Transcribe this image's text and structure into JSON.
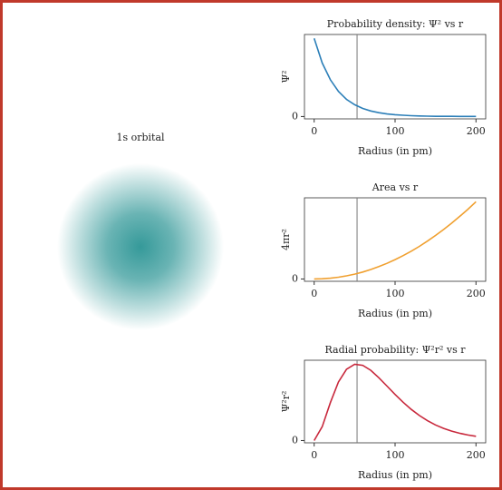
{
  "chart_data": [
    {
      "type": "orbital",
      "title": "1s orbital",
      "color": "#2a9494"
    },
    {
      "type": "line",
      "title": "Probability density: Ψ² vs r",
      "xlabel": "Radius (in pm)",
      "ylabel": "Ψ²",
      "x": [
        0,
        10,
        20,
        30,
        40,
        50,
        60,
        70,
        80,
        90,
        100,
        110,
        120,
        130,
        140,
        150,
        160,
        170,
        180,
        190,
        200
      ],
      "series": [
        {
          "color": "#2c7fb8",
          "values": [
            1,
            0.685,
            0.47,
            0.322,
            0.22,
            0.151,
            0.104,
            0.071,
            0.049,
            0.033,
            0.023,
            0.016,
            0.011,
            0.007,
            0.005,
            0.003,
            0.002,
            0.002,
            0.001,
            0.001,
            0.001
          ]
        }
      ],
      "xlim": [
        -12,
        212
      ],
      "ylim": [
        -0.03,
        1.05
      ],
      "xticks": [
        0,
        100,
        200
      ],
      "yticks": [
        0
      ],
      "vline": 53
    },
    {
      "type": "line",
      "title": "Area vs r",
      "xlabel": "Radius (in pm)",
      "ylabel": "4πr²",
      "x": [
        0,
        10,
        20,
        30,
        40,
        50,
        60,
        70,
        80,
        90,
        100,
        110,
        120,
        130,
        140,
        150,
        160,
        170,
        180,
        190,
        200
      ],
      "series": [
        {
          "color": "#f0a030",
          "values": [
            0,
            0.0025,
            0.01,
            0.0225,
            0.04,
            0.0625,
            0.09,
            0.1225,
            0.16,
            0.2025,
            0.25,
            0.3025,
            0.36,
            0.4225,
            0.49,
            0.5625,
            0.64,
            0.7225,
            0.81,
            0.9025,
            1
          ]
        }
      ],
      "xlim": [
        -12,
        212
      ],
      "ylim": [
        -0.03,
        1.05
      ],
      "xticks": [
        0,
        100,
        200
      ],
      "yticks": [
        0
      ],
      "vline": 53
    },
    {
      "type": "line",
      "title": "Radial probability: Ψ²r² vs r",
      "xlabel": "Radius (in pm)",
      "ylabel": "Ψ²r²",
      "x": [
        0,
        10,
        20,
        30,
        40,
        50,
        60,
        70,
        80,
        90,
        100,
        110,
        120,
        130,
        140,
        150,
        160,
        170,
        180,
        190,
        200
      ],
      "series": [
        {
          "color": "#c8283c",
          "values": [
            0,
            0.181,
            0.496,
            0.765,
            0.931,
            0.997,
            0.984,
            0.918,
            0.821,
            0.712,
            0.602,
            0.5,
            0.407,
            0.327,
            0.26,
            0.204,
            0.159,
            0.123,
            0.095,
            0.072,
            0.055
          ]
        }
      ],
      "xlim": [
        -12,
        212
      ],
      "ylim": [
        -0.03,
        1.05
      ],
      "xticks": [
        0,
        100,
        200
      ],
      "yticks": [
        0
      ],
      "vline": 53
    }
  ]
}
